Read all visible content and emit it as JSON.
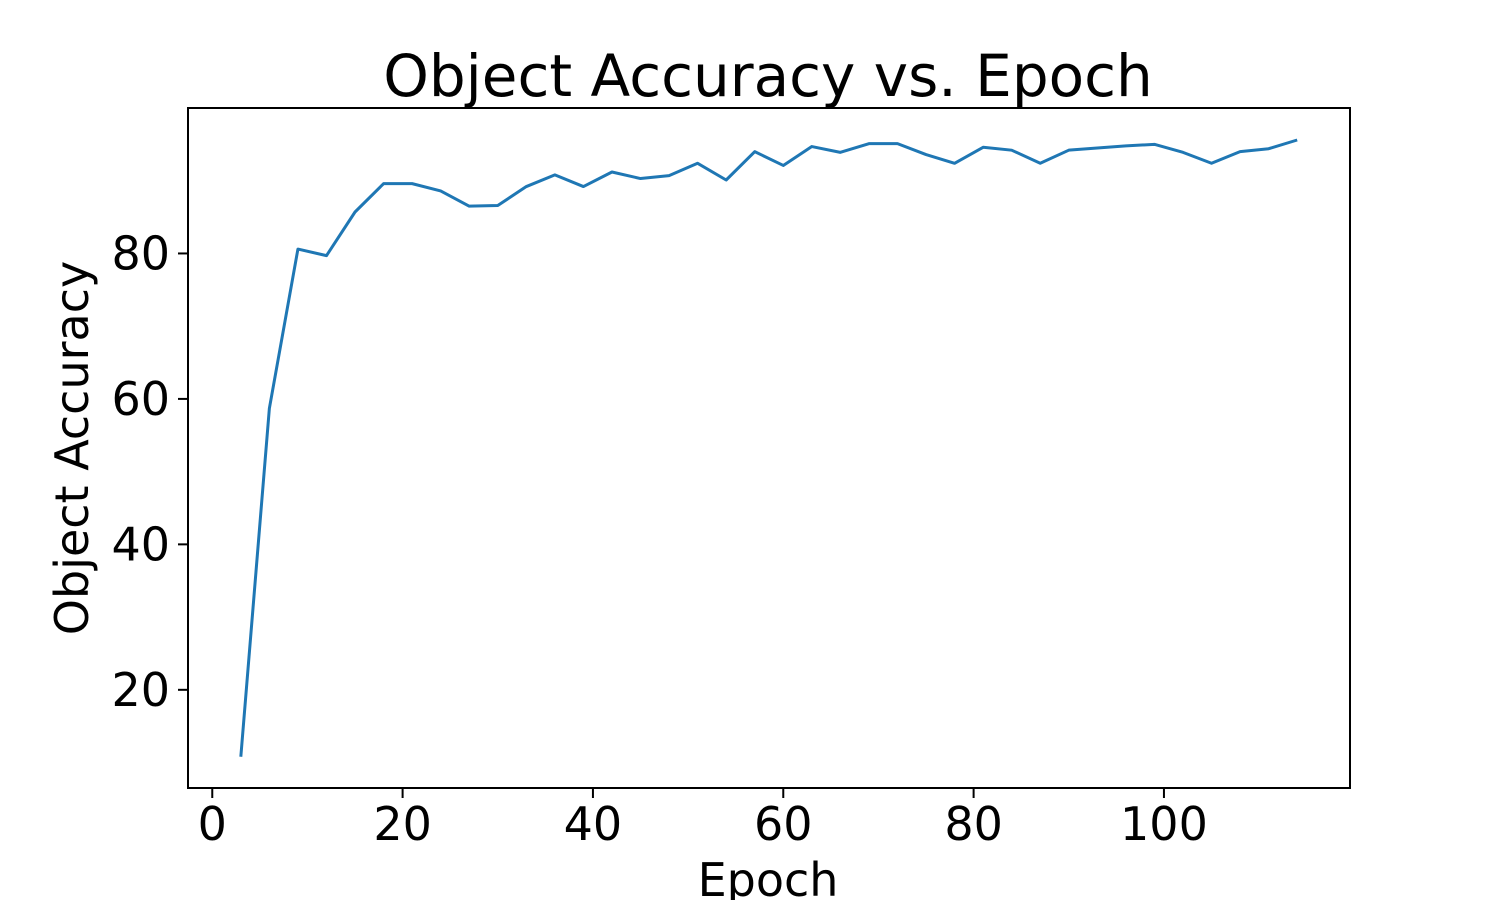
{
  "chart_data": {
    "type": "line",
    "title": "Object Accuracy vs. Epoch",
    "xlabel": "Epoch",
    "ylabel": "Object Accuracy",
    "xlim": [
      -2.55,
      119.55
    ],
    "ylim": [
      6.5,
      100.0
    ],
    "xticks": [
      0,
      20,
      40,
      60,
      80,
      100
    ],
    "yticks": [
      20,
      40,
      60,
      80
    ],
    "grid": false,
    "line_color": "#1f77b4",
    "series": [
      {
        "x": [
          3,
          6,
          9,
          12,
          15,
          18,
          21,
          24,
          27,
          30,
          33,
          36,
          39,
          42,
          45,
          48,
          51,
          54,
          57,
          60,
          63,
          66,
          69,
          72,
          75,
          78,
          81,
          84,
          87,
          90,
          93,
          96,
          99,
          102,
          105,
          108,
          111,
          114
        ],
        "values": [
          10.8,
          58.7,
          80.6,
          79.7,
          85.7,
          89.6,
          89.6,
          88.6,
          86.5,
          86.6,
          89.2,
          90.8,
          89.2,
          91.2,
          90.3,
          90.7,
          92.4,
          90.1,
          94.0,
          92.1,
          94.7,
          93.9,
          95.1,
          95.1,
          93.6,
          92.4,
          94.6,
          94.2,
          92.4,
          94.2,
          94.5,
          94.8,
          95.0,
          93.9,
          92.4,
          94.0,
          94.4,
          95.6
        ]
      }
    ]
  }
}
